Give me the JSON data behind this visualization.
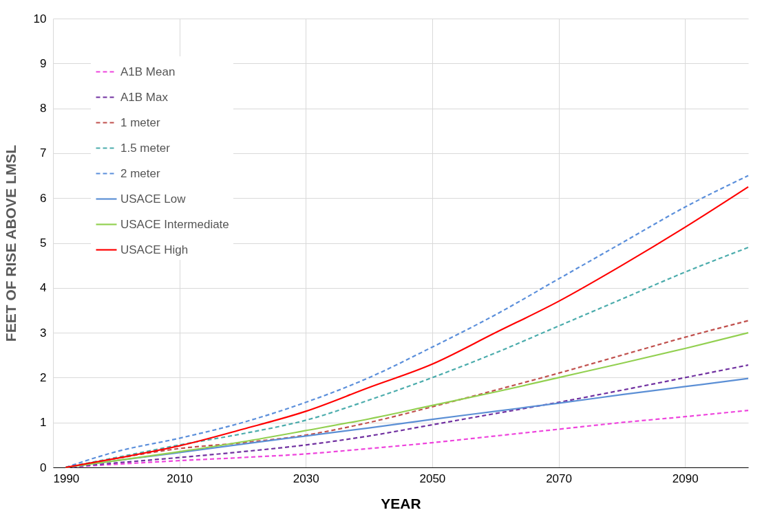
{
  "chart_data": {
    "type": "line",
    "xlabel": "YEAR",
    "ylabel": "FEET OF RISE ABOVE LMSL",
    "x": [
      1992,
      2000,
      2010,
      2020,
      2030,
      2040,
      2050,
      2060,
      2070,
      2080,
      2090,
      2100
    ],
    "xlim": [
      1990,
      2100
    ],
    "xticks": [
      1990,
      2010,
      2030,
      2050,
      2070,
      2090
    ],
    "ylim": [
      0,
      10
    ],
    "yticks": [
      0,
      1,
      2,
      3,
      4,
      5,
      6,
      7,
      8,
      9,
      10
    ],
    "grid": true,
    "legend": "top left",
    "marker": "none",
    "series": [
      {
        "name": "A1B Mean",
        "color": "#ee44dd",
        "line_style": "dashed",
        "values": [
          0,
          0.07,
          0.15,
          0.22,
          0.3,
          0.42,
          0.55,
          0.7,
          0.85,
          1.0,
          1.13,
          1.27
        ]
      },
      {
        "name": "A1B Max",
        "color": "#7030a0",
        "line_style": "dashed",
        "values": [
          0,
          0.1,
          0.22,
          0.35,
          0.5,
          0.7,
          0.95,
          1.2,
          1.45,
          1.72,
          2.0,
          2.28
        ]
      },
      {
        "name": "1 meter",
        "color": "#c0504d",
        "line_style": "dashed",
        "values": [
          0,
          0.2,
          0.42,
          0.55,
          0.72,
          1.0,
          1.35,
          1.72,
          2.1,
          2.5,
          2.9,
          3.27
        ]
      },
      {
        "name": "1.5 meter",
        "color": "#4bacac",
        "line_style": "dashed",
        "values": [
          0,
          0.22,
          0.5,
          0.75,
          1.05,
          1.5,
          2.0,
          2.55,
          3.15,
          3.75,
          4.35,
          4.9
        ]
      },
      {
        "name": "2 meter",
        "color": "#5b8fdb",
        "line_style": "dashed",
        "values": [
          0,
          0.35,
          0.65,
          1.0,
          1.45,
          2.0,
          2.68,
          3.4,
          4.2,
          5.0,
          5.8,
          6.5
        ]
      },
      {
        "name": "USACE Low",
        "color": "#5b8fd5",
        "line_style": "solid",
        "values": [
          0,
          0.15,
          0.33,
          0.52,
          0.7,
          0.88,
          1.07,
          1.25,
          1.43,
          1.62,
          1.8,
          1.98
        ]
      },
      {
        "name": "USACE Intermediate",
        "color": "#92d050",
        "line_style": "solid",
        "values": [
          0,
          0.15,
          0.35,
          0.57,
          0.82,
          1.08,
          1.38,
          1.68,
          2.0,
          2.32,
          2.65,
          3.0
        ]
      },
      {
        "name": "USACE High",
        "color": "#ff0000",
        "line_style": "solid",
        "values": [
          0,
          0.2,
          0.48,
          0.85,
          1.25,
          1.78,
          2.3,
          3.0,
          3.7,
          4.5,
          5.35,
          6.25
        ]
      }
    ]
  }
}
